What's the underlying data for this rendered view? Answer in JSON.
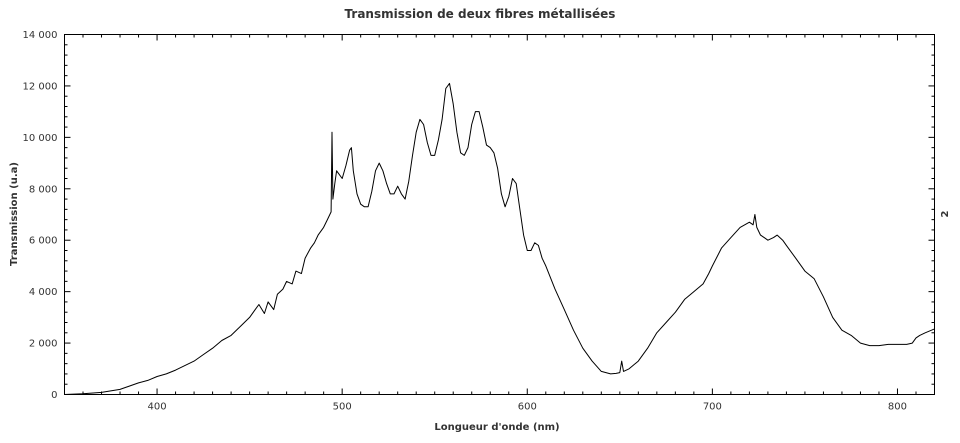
{
  "chart_data": {
    "type": "line",
    "title": "Transmission de deux fibres métallisées",
    "xlabel": "Longueur d'onde (nm)",
    "ylabel": "Transmission (u.a)",
    "right_axis_label": "2",
    "xlim": [
      350,
      820
    ],
    "ylim": [
      0,
      14000
    ],
    "x_ticks": [
      400,
      500,
      600,
      700,
      800
    ],
    "x_tick_labels": [
      "400",
      "500",
      "600",
      "700",
      "800"
    ],
    "y_ticks": [
      0,
      2000,
      4000,
      6000,
      8000,
      10000,
      12000,
      14000
    ],
    "y_tick_labels": [
      "0",
      "2 000",
      "4 000",
      "6 000",
      "8 000",
      "10 000",
      "12 000",
      "14 000"
    ],
    "grid": false,
    "legend": "none",
    "series": [
      {
        "color": "#000000",
        "x": [
          350,
          360,
          370,
          380,
          390,
          395,
          400,
          405,
          410,
          420,
          425,
          430,
          435,
          440,
          445,
          450,
          453,
          455,
          458,
          460,
          463,
          465,
          468,
          470,
          473,
          475,
          478,
          480,
          483,
          485,
          487,
          490,
          492,
          494,
          494.5,
          495,
          496,
          497,
          498,
          500,
          502,
          504,
          505,
          506,
          508,
          510,
          512,
          514,
          516,
          518,
          520,
          522,
          524,
          526,
          528,
          530,
          532,
          534,
          536,
          538,
          540,
          542,
          544,
          546,
          548,
          550,
          552,
          554,
          556,
          558,
          560,
          562,
          564,
          566,
          568,
          570,
          572,
          574,
          576,
          578,
          580,
          582,
          584,
          586,
          588,
          590,
          592,
          594,
          596,
          598,
          600,
          602,
          604,
          606,
          608,
          610,
          615,
          620,
          625,
          630,
          635,
          640,
          645,
          648,
          650,
          651,
          652,
          655,
          660,
          665,
          670,
          675,
          680,
          685,
          690,
          695,
          698,
          700,
          705,
          710,
          715,
          720,
          722,
          723,
          724,
          726,
          728,
          730,
          733,
          735,
          738,
          740,
          745,
          750,
          755,
          760,
          765,
          770,
          775,
          780,
          785,
          790,
          795,
          800,
          805,
          808,
          810,
          812,
          815,
          820
        ],
        "y": [
          0,
          30,
          80,
          200,
          450,
          550,
          700,
          800,
          950,
          1300,
          1550,
          1800,
          2100,
          2300,
          2650,
          3000,
          3300,
          3500,
          3150,
          3600,
          3300,
          3900,
          4100,
          4400,
          4300,
          4800,
          4700,
          5300,
          5700,
          5900,
          6200,
          6500,
          6800,
          7100,
          10200,
          7600,
          8200,
          8700,
          8600,
          8400,
          8900,
          9500,
          9600,
          8700,
          7800,
          7400,
          7300,
          7300,
          7900,
          8700,
          9000,
          8700,
          8200,
          7800,
          7800,
          8100,
          7800,
          7600,
          8300,
          9300,
          10200,
          10700,
          10500,
          9800,
          9300,
          9300,
          9900,
          10700,
          11900,
          12100,
          11300,
          10200,
          9400,
          9300,
          9600,
          10500,
          11000,
          11000,
          10400,
          9700,
          9600,
          9400,
          8800,
          7800,
          7300,
          7700,
          8400,
          8200,
          7200,
          6200,
          5600,
          5600,
          5900,
          5800,
          5300,
          5000,
          4100,
          3300,
          2500,
          1800,
          1300,
          900,
          800,
          820,
          850,
          1300,
          900,
          1000,
          1300,
          1800,
          2400,
          2800,
          3200,
          3700,
          4000,
          4300,
          4700,
          5000,
          5700,
          6100,
          6500,
          6700,
          6600,
          7000,
          6500,
          6200,
          6100,
          6000,
          6100,
          6200,
          6000,
          5800,
          5300,
          4800,
          4500,
          3800,
          3000,
          2500,
          2300,
          2000,
          1900,
          1900,
          1950,
          1950,
          1950,
          2000,
          2200,
          2300,
          2400,
          2550
        ]
      }
    ]
  }
}
